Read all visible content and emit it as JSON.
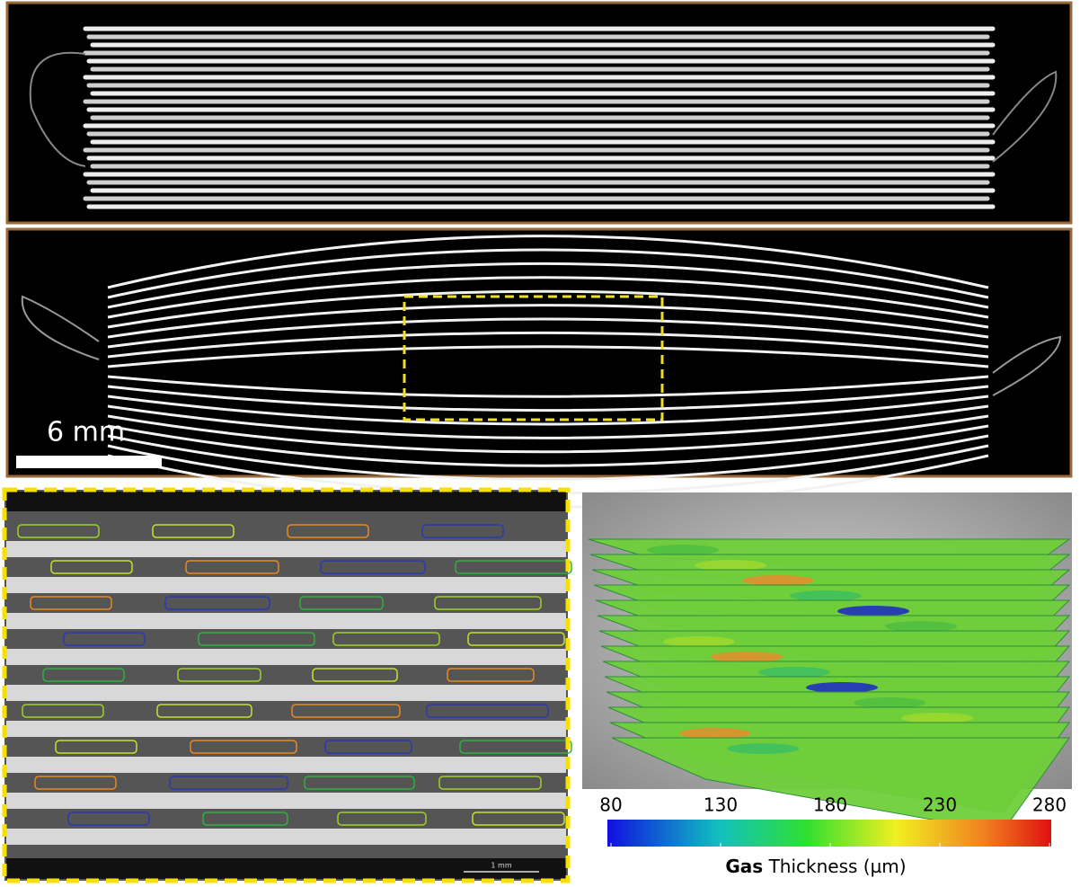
{
  "figure": {
    "top_scale_bar": "6 mm",
    "inset_scale_bar": "1 mm",
    "colorbar": {
      "lim": [
        80,
        280
      ],
      "ticks": [
        80,
        130,
        180,
        230,
        280
      ],
      "label_bold": "Gas",
      "label_rest": "Thickness (µm)"
    }
  }
}
